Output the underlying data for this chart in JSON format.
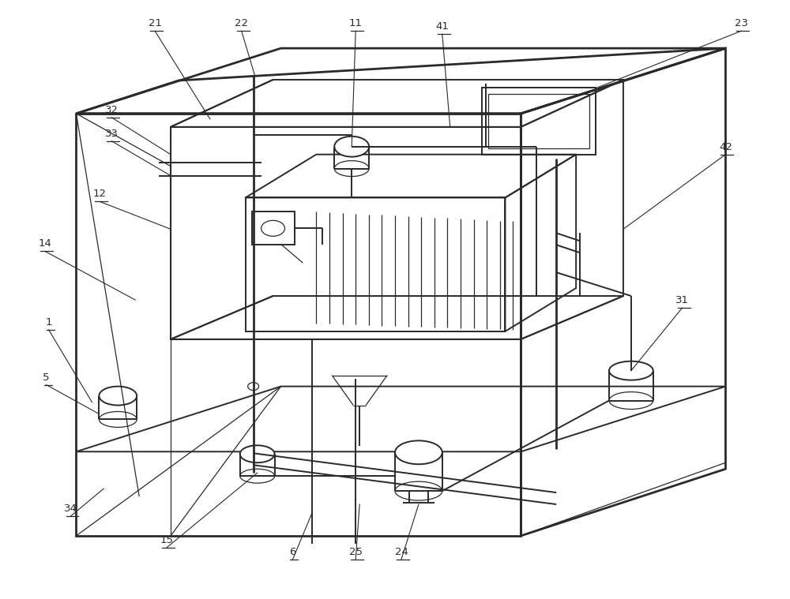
{
  "bg_color": "#ffffff",
  "line_color": "#2a2a2a",
  "lw_thin": 0.9,
  "lw_med": 1.4,
  "lw_thick": 2.0,
  "fs": 9.5,
  "figsize": [
    10.0,
    7.59
  ],
  "dpi": 100
}
